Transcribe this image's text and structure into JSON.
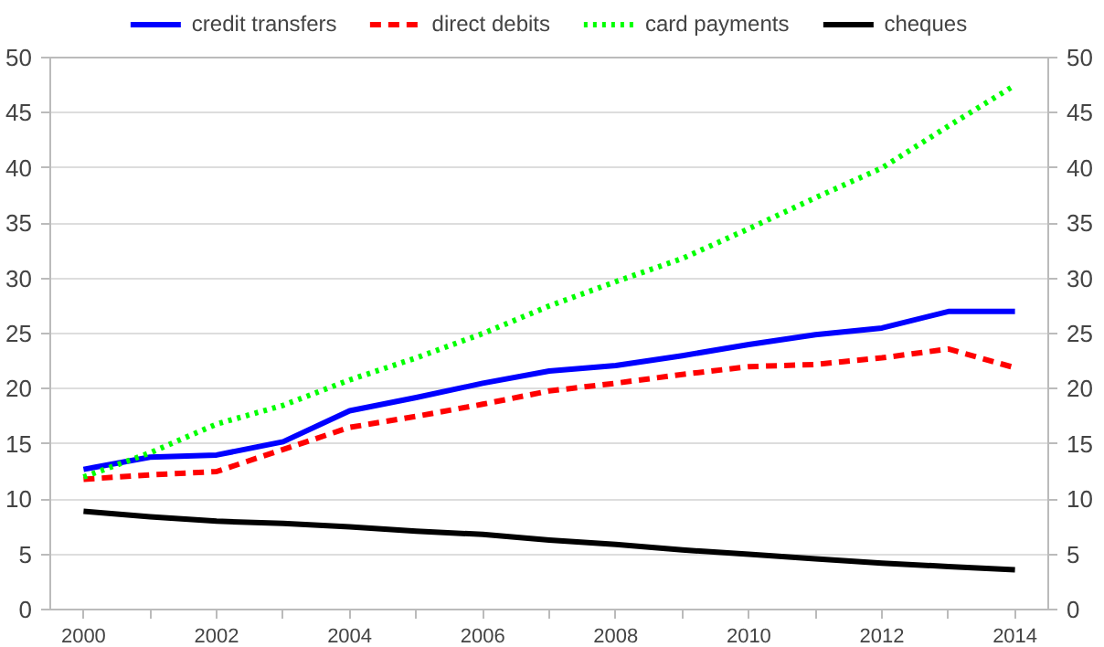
{
  "chart_data": {
    "type": "line",
    "x": [
      2000,
      2001,
      2002,
      2003,
      2004,
      2005,
      2006,
      2007,
      2008,
      2009,
      2010,
      2011,
      2012,
      2013,
      2014
    ],
    "xlim": [
      1999.5,
      2014.5
    ],
    "xticks": [
      2000,
      {
        "value": 2001,
        "label": null
      },
      2002,
      {
        "value": 2003,
        "label": null
      },
      2004,
      {
        "value": 2005,
        "label": null
      },
      2006,
      {
        "value": 2007,
        "label": null
      },
      2008,
      {
        "value": 2009,
        "label": null
      },
      2010,
      {
        "value": 2011,
        "label": null
      },
      2012,
      {
        "value": 2013,
        "label": null
      },
      2014
    ],
    "ylim": [
      0,
      50
    ],
    "yticks": [
      0,
      5,
      10,
      15,
      20,
      25,
      30,
      35,
      40,
      45,
      50
    ],
    "y2lim": [
      0,
      50
    ],
    "y2ticks": [
      0,
      5,
      10,
      15,
      20,
      25,
      30,
      35,
      40,
      45,
      50
    ],
    "grid": "y",
    "legend": "top",
    "series": [
      {
        "name": "credit transfers",
        "color": "#0000ff",
        "line_style": "solid",
        "values": [
          12.7,
          13.8,
          14.0,
          15.2,
          18.0,
          19.2,
          20.5,
          21.6,
          22.1,
          23.0,
          24.0,
          24.9,
          25.5,
          27.0,
          27.0
        ]
      },
      {
        "name": "direct debits",
        "color": "#ff0000",
        "line_style": "dashed",
        "values": [
          11.8,
          12.2,
          12.5,
          14.5,
          16.5,
          17.5,
          18.6,
          19.8,
          20.5,
          21.3,
          22.0,
          22.2,
          22.8,
          23.6,
          21.9
        ]
      },
      {
        "name": "card payments",
        "color": "#00ff00",
        "line_style": "dotted",
        "values": [
          12.0,
          14.2,
          16.8,
          18.5,
          20.8,
          22.8,
          25.0,
          27.5,
          29.7,
          31.8,
          34.5,
          37.3,
          40.0,
          43.8,
          47.5
        ]
      },
      {
        "name": "cheques",
        "color": "#000000",
        "line_style": "solid",
        "values": [
          8.9,
          8.4,
          8.0,
          7.8,
          7.5,
          7.1,
          6.8,
          6.3,
          5.9,
          5.4,
          5.0,
          4.6,
          4.2,
          3.9,
          3.6
        ]
      }
    ]
  }
}
